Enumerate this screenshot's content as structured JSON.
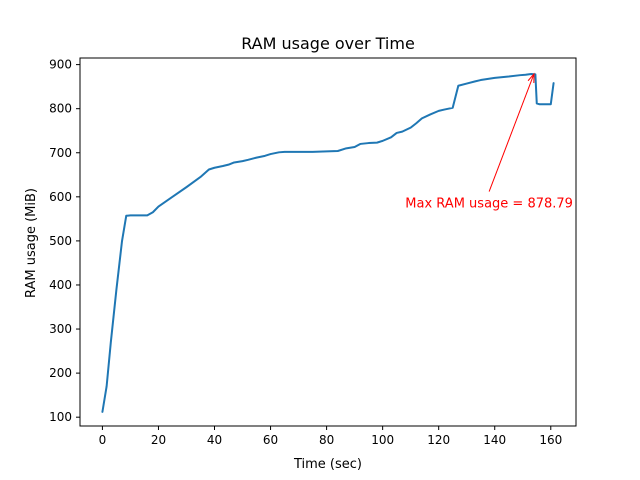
{
  "chart_data": {
    "type": "line",
    "title": "RAM usage over Time",
    "xlabel": "Time (sec)",
    "ylabel": "RAM usage (MiB)",
    "xlim": [
      -8,
      169
    ],
    "ylim": [
      80,
      915
    ],
    "xticks": [
      0,
      20,
      40,
      60,
      80,
      100,
      120,
      140,
      160
    ],
    "yticks": [
      100,
      200,
      300,
      400,
      500,
      600,
      700,
      800,
      900
    ],
    "grid": false,
    "line_color": "#1f77b4",
    "series": [
      {
        "x": [
          0,
          1.5,
          3,
          5,
          7,
          8.5,
          10,
          12,
          14,
          16,
          18,
          20,
          25,
          30,
          35,
          38,
          40,
          43,
          45,
          47,
          50,
          52,
          55,
          58,
          60,
          63,
          65,
          70,
          75,
          80,
          84,
          87,
          90,
          92,
          95,
          98,
          100,
          103,
          105,
          107,
          110,
          112,
          114,
          117,
          120,
          122,
          125,
          127,
          130,
          133,
          135,
          140,
          145,
          149,
          151,
          153,
          154.5,
          155,
          156,
          158,
          160,
          161
        ],
        "values": [
          112,
          170,
          270,
          390,
          500,
          557,
          558,
          558,
          558,
          558,
          565,
          578,
          600,
          622,
          645,
          662,
          666,
          670,
          673,
          678,
          681,
          684,
          689,
          693,
          697,
          701,
          702,
          702,
          702,
          703,
          704,
          710,
          713,
          720,
          722,
          723,
          727,
          735,
          745,
          748,
          757,
          767,
          778,
          787,
          795,
          798,
          802,
          852,
          857,
          862,
          865,
          870,
          873,
          876,
          877,
          878.79,
          878,
          812,
          810,
          810,
          810,
          858
        ]
      }
    ],
    "annotation": {
      "text": "Max RAM usage = 878.79",
      "x": 154,
      "y": 878.79,
      "text_x": 138,
      "text_y": 612,
      "color": "#ff0000"
    }
  }
}
